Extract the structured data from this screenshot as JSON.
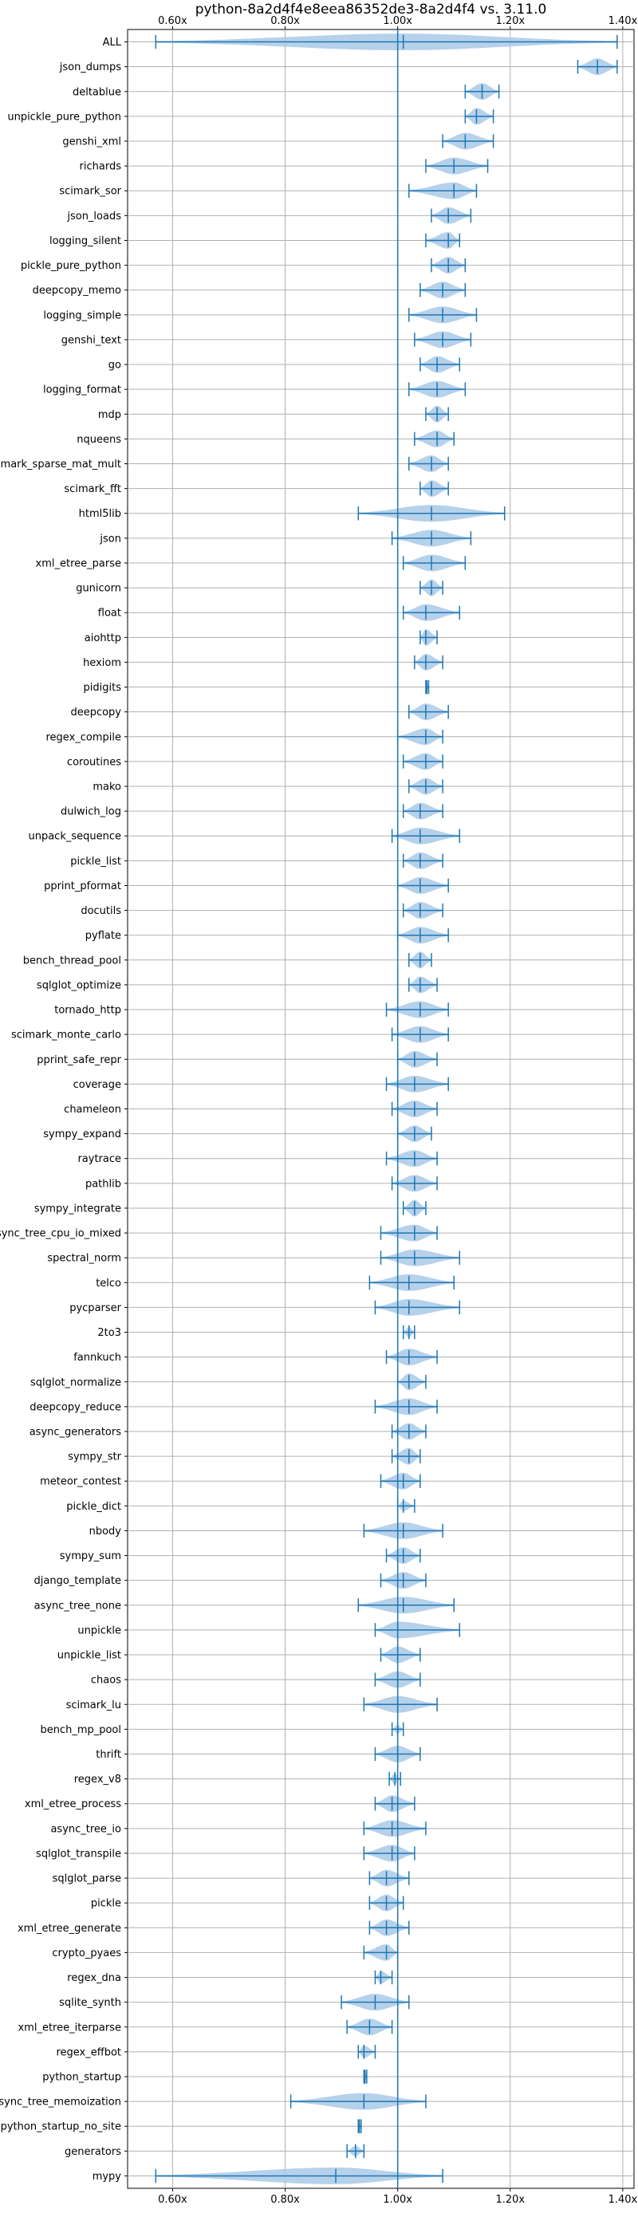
{
  "chart_data": {
    "type": "violin",
    "orientation": "horizontal",
    "title": "python-8a2d4f4e8eea86352de3-8a2d4f4 vs. 3.11.0",
    "xlabel": "",
    "ylabel": "",
    "xlim": [
      0.52,
      1.42
    ],
    "x_ticks": [
      0.6,
      0.8,
      1.0,
      1.2,
      1.4
    ],
    "x_tick_labels": [
      "0.60x",
      "0.80x",
      "1.00x",
      "1.20x",
      "1.40x"
    ],
    "x_tick_position": "top-and-bottom",
    "reference_line": 1.0,
    "grid": true,
    "colors": {
      "violin_fill": "#a9c9e6",
      "stroke": "#1f77b4",
      "grid": "#b0b0b0"
    },
    "categories": [
      "ALL",
      "json_dumps",
      "deltablue",
      "unpickle_pure_python",
      "genshi_xml",
      "richards",
      "scimark_sor",
      "json_loads",
      "logging_silent",
      "pickle_pure_python",
      "deepcopy_memo",
      "logging_simple",
      "genshi_text",
      "go",
      "logging_format",
      "mdp",
      "nqueens",
      "scimark_sparse_mat_mult",
      "scimark_fft",
      "html5lib",
      "json",
      "xml_etree_parse",
      "gunicorn",
      "float",
      "aiohttp",
      "hexiom",
      "pidigits",
      "deepcopy",
      "regex_compile",
      "coroutines",
      "mako",
      "dulwich_log",
      "unpack_sequence",
      "pickle_list",
      "pprint_pformat",
      "docutils",
      "pyflate",
      "bench_thread_pool",
      "sqlglot_optimize",
      "tornado_http",
      "scimark_monte_carlo",
      "pprint_safe_repr",
      "coverage",
      "chameleon",
      "sympy_expand",
      "raytrace",
      "pathlib",
      "sympy_integrate",
      "async_tree_cpu_io_mixed",
      "spectral_norm",
      "telco",
      "pycparser",
      "2to3",
      "fannkuch",
      "sqlglot_normalize",
      "deepcopy_reduce",
      "async_generators",
      "sympy_str",
      "meteor_contest",
      "pickle_dict",
      "nbody",
      "sympy_sum",
      "django_template",
      "async_tree_none",
      "unpickle",
      "unpickle_list",
      "chaos",
      "scimark_lu",
      "bench_mp_pool",
      "thrift",
      "regex_v8",
      "xml_etree_process",
      "async_tree_io",
      "sqlglot_transpile",
      "sqlglot_parse",
      "pickle",
      "xml_etree_generate",
      "crypto_pyaes",
      "regex_dna",
      "sqlite_synth",
      "xml_etree_iterparse",
      "regex_effbot",
      "python_startup",
      "async_tree_memoization",
      "python_startup_no_site",
      "generators",
      "mypy"
    ],
    "series": [
      {
        "min": 0.57,
        "max": 1.39,
        "median": 1.01,
        "width": 0.8
      },
      {
        "min": 1.32,
        "max": 1.39,
        "median": 1.355,
        "width": 0.8
      },
      {
        "min": 1.12,
        "max": 1.18,
        "median": 1.15,
        "width": 0.8
      },
      {
        "min": 1.12,
        "max": 1.17,
        "median": 1.14,
        "width": 0.8
      },
      {
        "min": 1.08,
        "max": 1.17,
        "median": 1.12,
        "width": 0.8
      },
      {
        "min": 1.05,
        "max": 1.16,
        "median": 1.1,
        "width": 0.8
      },
      {
        "min": 1.02,
        "max": 1.14,
        "median": 1.1,
        "width": 0.8
      },
      {
        "min": 1.06,
        "max": 1.13,
        "median": 1.09,
        "width": 0.8
      },
      {
        "min": 1.05,
        "max": 1.11,
        "median": 1.09,
        "width": 0.8
      },
      {
        "min": 1.06,
        "max": 1.12,
        "median": 1.09,
        "width": 0.8
      },
      {
        "min": 1.04,
        "max": 1.12,
        "median": 1.08,
        "width": 0.8
      },
      {
        "min": 1.02,
        "max": 1.14,
        "median": 1.08,
        "width": 0.8
      },
      {
        "min": 1.03,
        "max": 1.13,
        "median": 1.08,
        "width": 0.8
      },
      {
        "min": 1.04,
        "max": 1.11,
        "median": 1.07,
        "width": 0.8
      },
      {
        "min": 1.02,
        "max": 1.12,
        "median": 1.07,
        "width": 0.8
      },
      {
        "min": 1.05,
        "max": 1.09,
        "median": 1.07,
        "width": 0.8
      },
      {
        "min": 1.03,
        "max": 1.1,
        "median": 1.07,
        "width": 0.8
      },
      {
        "min": 1.02,
        "max": 1.09,
        "median": 1.06,
        "width": 0.8
      },
      {
        "min": 1.04,
        "max": 1.09,
        "median": 1.06,
        "width": 0.8
      },
      {
        "min": 0.93,
        "max": 1.19,
        "median": 1.06,
        "width": 0.8
      },
      {
        "min": 0.99,
        "max": 1.13,
        "median": 1.06,
        "width": 0.8
      },
      {
        "min": 1.01,
        "max": 1.12,
        "median": 1.06,
        "width": 0.8
      },
      {
        "min": 1.04,
        "max": 1.08,
        "median": 1.06,
        "width": 0.8
      },
      {
        "min": 1.01,
        "max": 1.11,
        "median": 1.05,
        "width": 0.8
      },
      {
        "min": 1.04,
        "max": 1.07,
        "median": 1.05,
        "width": 0.8
      },
      {
        "min": 1.03,
        "max": 1.08,
        "median": 1.05,
        "width": 0.8
      },
      {
        "min": 1.05,
        "max": 1.055,
        "median": 1.052,
        "width": 0.3
      },
      {
        "min": 1.02,
        "max": 1.09,
        "median": 1.05,
        "width": 0.8
      },
      {
        "min": 1.0,
        "max": 1.08,
        "median": 1.05,
        "width": 0.8
      },
      {
        "min": 1.01,
        "max": 1.08,
        "median": 1.05,
        "width": 0.8
      },
      {
        "min": 1.02,
        "max": 1.08,
        "median": 1.05,
        "width": 0.8
      },
      {
        "min": 1.01,
        "max": 1.08,
        "median": 1.04,
        "width": 0.8
      },
      {
        "min": 0.99,
        "max": 1.11,
        "median": 1.04,
        "width": 0.8
      },
      {
        "min": 1.01,
        "max": 1.08,
        "median": 1.04,
        "width": 0.8
      },
      {
        "min": 1.0,
        "max": 1.09,
        "median": 1.04,
        "width": 0.8
      },
      {
        "min": 1.01,
        "max": 1.08,
        "median": 1.04,
        "width": 0.8
      },
      {
        "min": 1.0,
        "max": 1.09,
        "median": 1.04,
        "width": 0.8
      },
      {
        "min": 1.02,
        "max": 1.06,
        "median": 1.04,
        "width": 0.8
      },
      {
        "min": 1.02,
        "max": 1.07,
        "median": 1.04,
        "width": 0.8
      },
      {
        "min": 0.98,
        "max": 1.09,
        "median": 1.04,
        "width": 0.8
      },
      {
        "min": 0.99,
        "max": 1.09,
        "median": 1.04,
        "width": 0.8
      },
      {
        "min": 1.0,
        "max": 1.07,
        "median": 1.03,
        "width": 0.8
      },
      {
        "min": 0.98,
        "max": 1.09,
        "median": 1.03,
        "width": 0.8
      },
      {
        "min": 0.99,
        "max": 1.07,
        "median": 1.03,
        "width": 0.8
      },
      {
        "min": 1.0,
        "max": 1.06,
        "median": 1.03,
        "width": 0.8
      },
      {
        "min": 0.98,
        "max": 1.07,
        "median": 1.03,
        "width": 0.8
      },
      {
        "min": 0.99,
        "max": 1.07,
        "median": 1.03,
        "width": 0.8
      },
      {
        "min": 1.01,
        "max": 1.05,
        "median": 1.03,
        "width": 0.8
      },
      {
        "min": 0.97,
        "max": 1.07,
        "median": 1.03,
        "width": 0.8
      },
      {
        "min": 0.97,
        "max": 1.11,
        "median": 1.03,
        "width": 0.8
      },
      {
        "min": 0.95,
        "max": 1.1,
        "median": 1.02,
        "width": 0.8
      },
      {
        "min": 0.96,
        "max": 1.11,
        "median": 1.02,
        "width": 0.8
      },
      {
        "min": 1.01,
        "max": 1.03,
        "median": 1.02,
        "width": 0.5
      },
      {
        "min": 0.98,
        "max": 1.07,
        "median": 1.02,
        "width": 0.8
      },
      {
        "min": 1.0,
        "max": 1.05,
        "median": 1.02,
        "width": 0.8
      },
      {
        "min": 0.96,
        "max": 1.07,
        "median": 1.02,
        "width": 0.8
      },
      {
        "min": 0.99,
        "max": 1.05,
        "median": 1.02,
        "width": 0.8
      },
      {
        "min": 0.99,
        "max": 1.04,
        "median": 1.02,
        "width": 0.8
      },
      {
        "min": 0.97,
        "max": 1.04,
        "median": 1.01,
        "width": 0.8
      },
      {
        "min": 1.0,
        "max": 1.03,
        "median": 1.01,
        "width": 0.5
      },
      {
        "min": 0.94,
        "max": 1.08,
        "median": 1.01,
        "width": 0.8
      },
      {
        "min": 0.98,
        "max": 1.04,
        "median": 1.01,
        "width": 0.8
      },
      {
        "min": 0.97,
        "max": 1.05,
        "median": 1.01,
        "width": 0.8
      },
      {
        "min": 0.93,
        "max": 1.1,
        "median": 1.01,
        "width": 0.8
      },
      {
        "min": 0.96,
        "max": 1.11,
        "median": 1.0,
        "width": 0.8
      },
      {
        "min": 0.97,
        "max": 1.04,
        "median": 1.0,
        "width": 0.8
      },
      {
        "min": 0.96,
        "max": 1.04,
        "median": 1.0,
        "width": 0.8
      },
      {
        "min": 0.94,
        "max": 1.07,
        "median": 1.0,
        "width": 0.8
      },
      {
        "min": 0.99,
        "max": 1.01,
        "median": 1.0,
        "width": 0.4
      },
      {
        "min": 0.96,
        "max": 1.04,
        "median": 1.0,
        "width": 0.8
      },
      {
        "min": 0.985,
        "max": 1.005,
        "median": 0.995,
        "width": 0.5
      },
      {
        "min": 0.96,
        "max": 1.03,
        "median": 0.99,
        "width": 0.8
      },
      {
        "min": 0.94,
        "max": 1.05,
        "median": 0.99,
        "width": 0.8
      },
      {
        "min": 0.94,
        "max": 1.03,
        "median": 0.99,
        "width": 0.8
      },
      {
        "min": 0.95,
        "max": 1.02,
        "median": 0.98,
        "width": 0.8
      },
      {
        "min": 0.95,
        "max": 1.01,
        "median": 0.98,
        "width": 0.8
      },
      {
        "min": 0.95,
        "max": 1.02,
        "median": 0.98,
        "width": 0.8
      },
      {
        "min": 0.94,
        "max": 1.0,
        "median": 0.98,
        "width": 0.8
      },
      {
        "min": 0.96,
        "max": 0.99,
        "median": 0.97,
        "width": 0.6
      },
      {
        "min": 0.9,
        "max": 1.02,
        "median": 0.96,
        "width": 0.8
      },
      {
        "min": 0.91,
        "max": 0.99,
        "median": 0.95,
        "width": 0.8
      },
      {
        "min": 0.93,
        "max": 0.96,
        "median": 0.94,
        "width": 0.6
      },
      {
        "min": 0.94,
        "max": 0.945,
        "median": 0.942,
        "width": 0.3
      },
      {
        "min": 0.81,
        "max": 1.05,
        "median": 0.94,
        "width": 0.8
      },
      {
        "min": 0.93,
        "max": 0.935,
        "median": 0.932,
        "width": 0.3
      },
      {
        "min": 0.91,
        "max": 0.94,
        "median": 0.925,
        "width": 0.5
      },
      {
        "min": 0.57,
        "max": 1.08,
        "median": 0.89,
        "width": 0.8
      }
    ]
  }
}
